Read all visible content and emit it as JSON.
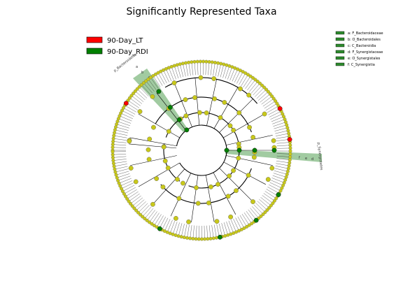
{
  "title": "Significantly Represented Taxa",
  "colors": {
    "lt": "#ff0000",
    "rdi": "#008000",
    "node_default": "#c8c81a",
    "highlight_fill": "#2e8b2e"
  },
  "legend": {
    "items": [
      {
        "label": "90-Day_LT",
        "color": "#ff0000"
      },
      {
        "label": "90-Day_RDI",
        "color": "#008000"
      }
    ]
  },
  "clade_key": [
    {
      "text": "a: F_Bacteroidaceae"
    },
    {
      "text": "b: O_Bacteroidales"
    },
    {
      "text": "c: C_Bacteroidia"
    },
    {
      "text": "d: F_Synergistaceae"
    },
    {
      "text": "e: O_Synergistales"
    },
    {
      "text": "f: C_Synergistia"
    }
  ],
  "clade_labels": {
    "bacteroidia": "p_Bacteroidetes",
    "synergistia": "p_Synergistetes",
    "letters_top": [
      "c",
      "b",
      "a"
    ],
    "letters_right": [
      "f",
      "e",
      "d"
    ]
  }
}
